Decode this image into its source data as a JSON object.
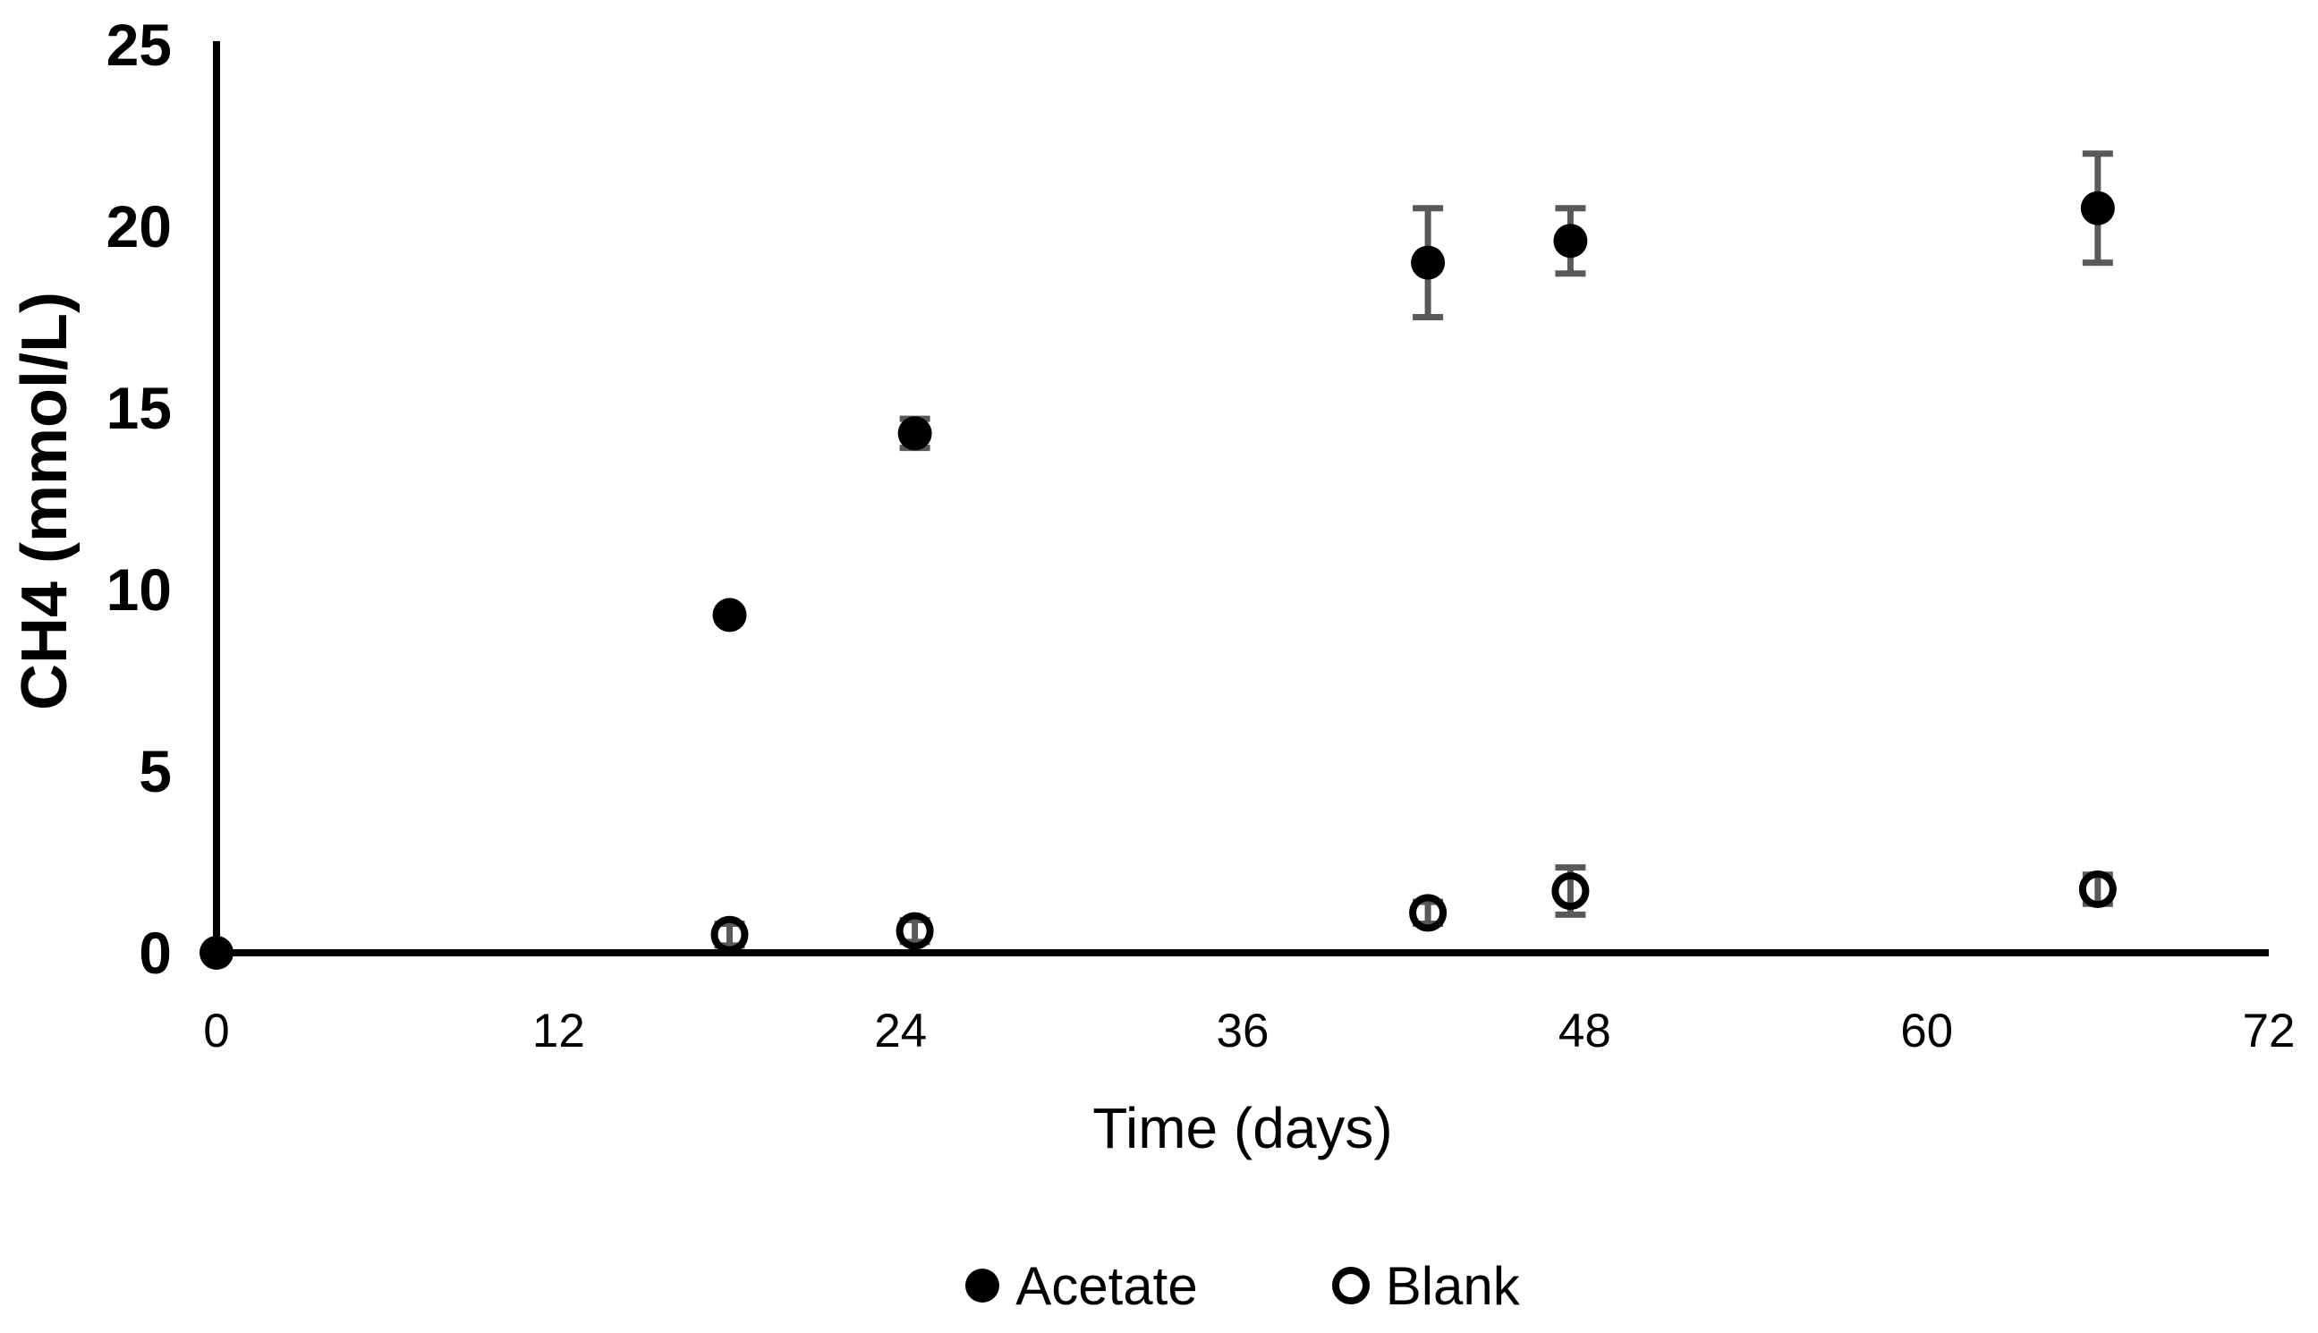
{
  "figure": {
    "background_color": "#ffffff",
    "axis_color": "#000000",
    "error_bar_color": "#595959",
    "marker_color": "#000000"
  },
  "chart_data": {
    "type": "scatter",
    "title": "",
    "xlabel": "Time (days)",
    "ylabel": "CH4 (mmol/L)",
    "xlim": [
      0,
      72
    ],
    "ylim": [
      0,
      25
    ],
    "x_ticks": [
      0,
      12,
      24,
      36,
      48,
      60,
      72
    ],
    "y_ticks": [
      0,
      5,
      10,
      15,
      20,
      25
    ],
    "grid": false,
    "tick_marks": false,
    "legend_position": "bottom-center",
    "series": [
      {
        "name": "Acetate",
        "marker": "filled-circle",
        "points": [
          {
            "x": 0,
            "y": 0,
            "err": 0
          },
          {
            "x": 18,
            "y": 9.3,
            "err": 0
          },
          {
            "x": 24.5,
            "y": 14.3,
            "err": 0.4
          },
          {
            "x": 42.5,
            "y": 19.0,
            "err": 1.5
          },
          {
            "x": 47.5,
            "y": 19.6,
            "err": 0.9
          },
          {
            "x": 66,
            "y": 20.5,
            "err": 1.5
          }
        ]
      },
      {
        "name": "Blank",
        "marker": "open-circle",
        "points": [
          {
            "x": 18,
            "y": 0.5,
            "err": 0.3
          },
          {
            "x": 24.5,
            "y": 0.6,
            "err": 0.3
          },
          {
            "x": 42.5,
            "y": 1.1,
            "err": 0.3
          },
          {
            "x": 47.5,
            "y": 1.7,
            "err": 0.65
          },
          {
            "x": 66,
            "y": 1.75,
            "err": 0.4
          }
        ]
      }
    ]
  },
  "legend": {
    "items": [
      {
        "label": "Acetate",
        "marker": "filled-circle"
      },
      {
        "label": "Blank",
        "marker": "open-circle"
      }
    ]
  }
}
